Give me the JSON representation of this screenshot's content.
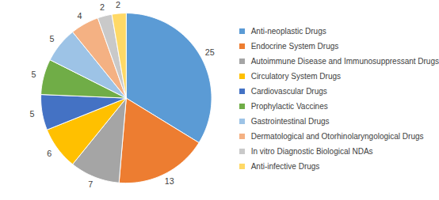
{
  "chart_data": {
    "type": "pie",
    "categories": [
      "Anti-neoplastic Drugs",
      "Endocrine System Drugs",
      "Autoimmune Disease and Immunosuppressant Drugs",
      "Circulatory System Drugs",
      "Cardiovascular Drugs",
      "Prophylactic Vaccines",
      "Gastrointestinal Drugs",
      "Dermatological and Otorhinolaryngological Drugs",
      "In vitro Diagnostic Biological NDAs",
      "Anti-infective Drugs"
    ],
    "values": [
      25,
      13,
      7,
      6,
      5,
      5,
      5,
      4,
      2,
      2
    ],
    "colors": [
      "#5b9bd5",
      "#ed7d31",
      "#a5a5a5",
      "#ffc000",
      "#4472c4",
      "#70ad47",
      "#9dc3e6",
      "#f4b183",
      "#c9c9c9",
      "#ffd966"
    ],
    "data_labels": true,
    "legend": "right"
  }
}
